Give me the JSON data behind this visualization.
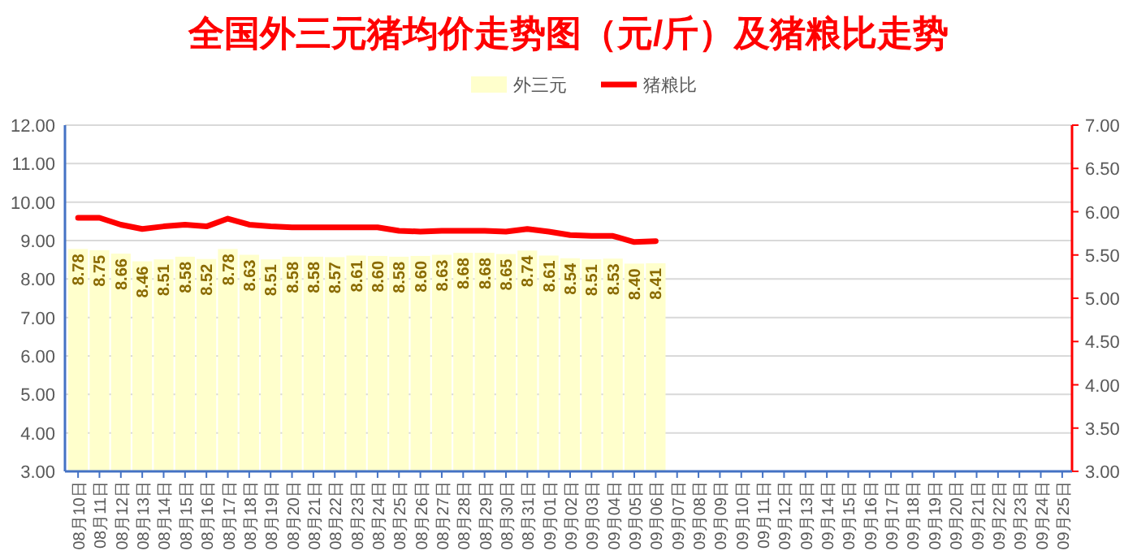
{
  "chart_data": {
    "type": "bar",
    "title": "全国外三元猪均价走势图（元/斤）及猪粮比走势",
    "categories": [
      "08月10日",
      "08月11日",
      "08月12日",
      "08月13日",
      "08月14日",
      "08月15日",
      "08月16日",
      "08月17日",
      "08月18日",
      "08月19日",
      "08月20日",
      "08月21日",
      "08月22日",
      "08月23日",
      "08月24日",
      "08月25日",
      "08月26日",
      "08月27日",
      "08月28日",
      "08月29日",
      "08月30日",
      "08月31日",
      "09月01日",
      "09月02日",
      "09月03日",
      "09月04日",
      "09月05日",
      "09月06日",
      "09月07日",
      "09月08日",
      "09月09日",
      "09月10日",
      "09月11日",
      "09月12日",
      "09月13日",
      "09月14日",
      "09月15日",
      "09月16日",
      "09月17日",
      "09月18日",
      "09月19日",
      "09月20日",
      "09月21日",
      "09月22日",
      "09月23日",
      "09月24日",
      "09月25日"
    ],
    "series": [
      {
        "name": "外三元",
        "color": "#ffffcc",
        "values": [
          8.78,
          8.75,
          8.66,
          8.46,
          8.51,
          8.58,
          8.52,
          8.78,
          8.63,
          8.51,
          8.58,
          8.58,
          8.57,
          8.61,
          8.6,
          8.58,
          8.6,
          8.63,
          8.68,
          8.68,
          8.65,
          8.74,
          8.61,
          8.54,
          8.51,
          8.53,
          8.4,
          8.41,
          null,
          null,
          null,
          null,
          null,
          null,
          null,
          null,
          null,
          null,
          null,
          null,
          null,
          null,
          null,
          null,
          null,
          null,
          null
        ],
        "value_labels": [
          "8.78",
          "8.75",
          "8.66",
          "8.46",
          "8.51",
          "8.58",
          "8.52",
          "8.78",
          "8.63",
          "8.51",
          "8.58",
          "8.58",
          "8.57",
          "8.61",
          "8.60",
          "8.58",
          "8.60",
          "8.63",
          "8.68",
          "8.68",
          "8.65",
          "8.74",
          "8.61",
          "8.54",
          "8.51",
          "8.53",
          "8.40",
          "8.41",
          null,
          null,
          null,
          null,
          null,
          null,
          null,
          null,
          null,
          null,
          null,
          null,
          null,
          null,
          null,
          null,
          null,
          null,
          null
        ]
      },
      {
        "name": "猪粮比",
        "type": "line",
        "axis": "y2",
        "color": "#ff0000",
        "values": [
          5.93,
          5.93,
          5.85,
          5.8,
          5.83,
          5.85,
          5.83,
          5.92,
          5.85,
          5.83,
          5.82,
          5.82,
          5.82,
          5.82,
          5.82,
          5.78,
          5.77,
          5.78,
          5.78,
          5.78,
          5.77,
          5.8,
          5.77,
          5.73,
          5.72,
          5.72,
          5.65,
          5.66,
          null,
          null,
          null,
          null,
          null,
          null,
          null,
          null,
          null,
          null,
          null,
          null,
          null,
          null,
          null,
          null,
          null,
          null,
          null
        ]
      }
    ],
    "ylim": [
      3,
      12
    ],
    "yticks": [
      {
        "value": 3,
        "label": "3.00"
      },
      {
        "value": 4,
        "label": "4.00"
      },
      {
        "value": 5,
        "label": "5.00"
      },
      {
        "value": 6,
        "label": "6.00"
      },
      {
        "value": 7,
        "label": "7.00"
      },
      {
        "value": 8,
        "label": "8.00"
      },
      {
        "value": 9,
        "label": "9.00"
      },
      {
        "value": 10,
        "label": "10.00"
      },
      {
        "value": 11,
        "label": "11.00"
      },
      {
        "value": 12,
        "label": "12.00"
      }
    ],
    "y2lim": [
      3,
      7
    ],
    "y2ticks": [
      {
        "value": 3,
        "label": "3.00"
      },
      {
        "value": 3.5,
        "label": "3.50"
      },
      {
        "value": 4,
        "label": "4.00"
      },
      {
        "value": 4.5,
        "label": "4.50"
      },
      {
        "value": 5,
        "label": "5.00"
      },
      {
        "value": 5.5,
        "label": "5.50"
      },
      {
        "value": 6,
        "label": "6.00"
      },
      {
        "value": 6.5,
        "label": "6.50"
      },
      {
        "value": 7,
        "label": "7.00"
      }
    ],
    "grid": "y",
    "legend": "top",
    "marker": "none",
    "line_style": "solid"
  }
}
